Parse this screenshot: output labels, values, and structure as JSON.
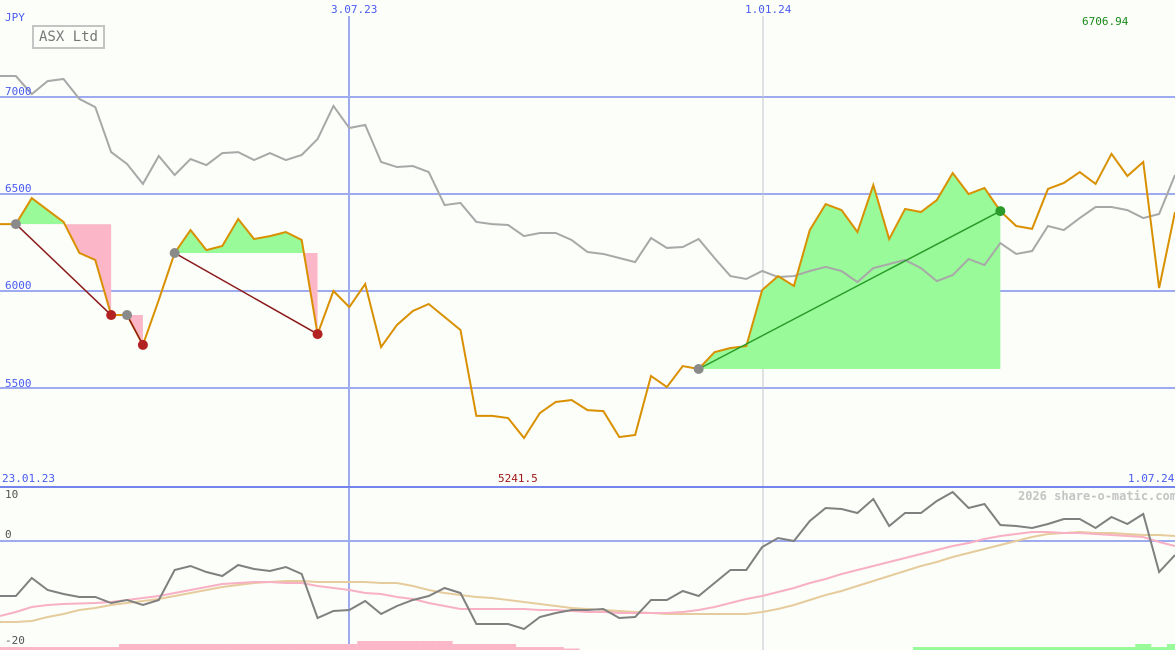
{
  "header": {
    "currency": "JPY",
    "title": "ASX Ltd",
    "high_label": "6706.94",
    "low_label": "5241.5"
  },
  "watermark": "2026 share-o-matic.com",
  "colors": {
    "price": "#d99000",
    "compare": "#a8a8a8",
    "grid": "#9fabf0",
    "win_fill": "#98fa98",
    "loss_fill": "#fbb6c8",
    "loss_line": "#8b1a1a",
    "win_line": "#2a9a2a",
    "momentum": "#808080",
    "ma_fast": "#f8b0c4",
    "ma_slow": "#e6cc9c",
    "high": "#1a8a1a",
    "low": "#a01818"
  },
  "chart_data": [
    {
      "type": "line",
      "x_start": "23.01.23",
      "x_interval": "weekly",
      "x_tick_labels": [
        "23.01.23",
        "3.07.23",
        "1.01.24",
        "1.07.24"
      ],
      "ylabel": "JPY",
      "ylim": [
        5120,
        7210
      ],
      "y_ticks": [
        7000,
        6500,
        6000,
        5500
      ],
      "grid": true,
      "series": [
        {
          "values": [
            6345,
            6345,
            6479,
            6417,
            6356,
            6196,
            6160,
            5876,
            5876,
            5722,
            5954,
            6196,
            6314,
            6211,
            6232,
            6371,
            6268,
            6283,
            6304,
            6263,
            5778,
            6000,
            5917,
            6036,
            5711,
            5825,
            5897,
            5933,
            5866,
            5799,
            5356,
            5356,
            5345,
            5242,
            5371,
            5428,
            5438,
            5386,
            5381,
            5247,
            5258,
            5562,
            5505,
            5613,
            5598,
            5685,
            5706,
            5716,
            6005,
            6077,
            6026,
            6314,
            6448,
            6417,
            6304,
            6546,
            6268,
            6423,
            6407,
            6469,
            6608,
            6500,
            6531,
            6412,
            6335,
            6320,
            6526,
            6557,
            6613,
            6552,
            6707,
            6593,
            6665,
            6015,
            6407
          ]
        },
        {
          "values": [
            7108,
            7108,
            7015,
            7082,
            7093,
            6990,
            6948,
            6716,
            6655,
            6552,
            6696,
            6598,
            6680,
            6649,
            6711,
            6716,
            6675,
            6711,
            6675,
            6701,
            6783,
            6954,
            6840,
            6856,
            6665,
            6639,
            6644,
            6613,
            6443,
            6454,
            6356,
            6345,
            6340,
            6283,
            6299,
            6299,
            6263,
            6201,
            6191,
            6170,
            6149,
            6273,
            6222,
            6227,
            6268,
            6170,
            6077,
            6062,
            6103,
            6072,
            6077,
            6103,
            6124,
            6103,
            6046,
            6118,
            6139,
            6160,
            6118,
            6051,
            6082,
            6165,
            6134,
            6247,
            6191,
            6206,
            6335,
            6314,
            6376,
            6433,
            6433,
            6417,
            6376,
            6397,
            6598
          ]
        }
      ],
      "trades": [
        {
          "entry_week": 1,
          "entry": 6345,
          "exit_week": 7,
          "exit": 5876,
          "result": "loss"
        },
        {
          "entry_week": 8,
          "entry": 5876,
          "exit_week": 9,
          "exit": 5722,
          "result": "loss"
        },
        {
          "entry_week": 11,
          "entry": 6196,
          "exit_week": 20,
          "exit": 5778,
          "result": "loss"
        },
        {
          "entry_week": 44,
          "entry": 5598,
          "exit_week": 63,
          "exit": 6412,
          "result": "win"
        }
      ]
    },
    {
      "type": "line",
      "ylim": [
        -21,
        12
      ],
      "y_ticks": [
        10,
        0,
        -20
      ],
      "series": [
        {
          "values": [
            -11,
            -11,
            -7.4,
            -9.8,
            -10.6,
            -11.2,
            -11.2,
            -12.4,
            -11.8,
            -12.8,
            -11.8,
            -5.8,
            -5,
            -6.2,
            -7,
            -4.8,
            -5.6,
            -6,
            -5.2,
            -6.6,
            -15.4,
            -14,
            -13.8,
            -12,
            -14.6,
            -13,
            -11.8,
            -11,
            -9.4,
            -10.4,
            -16.6,
            -16.6,
            -16.6,
            -17.6,
            -15.2,
            -14.4,
            -13.8,
            -13.8,
            -13.6,
            -15.4,
            -15.2,
            -11.8,
            -11.8,
            -10,
            -11,
            -8.4,
            -5.8,
            -5.8,
            -1.2,
            0.6,
            0,
            4,
            6.6,
            6.4,
            5.6,
            8.4,
            3,
            5.6,
            5.6,
            8,
            9.8,
            6.6,
            7.4,
            3.2,
            3,
            2.6,
            3.4,
            4.4,
            4.4,
            2.6,
            4.8,
            3.4,
            5.4,
            -6.2,
            -2.8
          ]
        },
        {
          "values": [
            -15,
            -14.2,
            -13.2,
            -12.8,
            -12.6,
            -12.5,
            -12.4,
            -12.2,
            -11.8,
            -11.4,
            -11,
            -10.4,
            -9.8,
            -9.2,
            -8.6,
            -8.4,
            -8.2,
            -8.2,
            -8.4,
            -8.4,
            -9,
            -9.4,
            -9.8,
            -10.4,
            -10.6,
            -11.2,
            -11.6,
            -12.4,
            -13,
            -13.6,
            -13.6,
            -13.6,
            -13.6,
            -13.6,
            -13.8,
            -13.8,
            -14,
            -14.2,
            -14.2,
            -14.4,
            -14.4,
            -14.4,
            -14.4,
            -14.2,
            -13.8,
            -13.2,
            -12.4,
            -11.6,
            -11,
            -10.2,
            -9.4,
            -8.4,
            -7.6,
            -6.6,
            -5.8,
            -5,
            -4.2,
            -3.4,
            -2.6,
            -1.8,
            -1,
            -0.4,
            0.4,
            1,
            1.4,
            1.8,
            1.8,
            1.6,
            1.6,
            1.4,
            1.2,
            1,
            0.8,
            -0.2,
            -1
          ]
        },
        {
          "values": [
            -16.2,
            -16.2,
            -16,
            -15.2,
            -14.6,
            -13.8,
            -13.4,
            -12.8,
            -12.4,
            -12,
            -11.6,
            -11,
            -10.4,
            -9.8,
            -9.2,
            -8.8,
            -8.4,
            -8.2,
            -8,
            -8,
            -8.2,
            -8.2,
            -8.2,
            -8.2,
            -8.4,
            -8.4,
            -9,
            -9.8,
            -10.4,
            -10.8,
            -11.2,
            -11.4,
            -11.8,
            -12.2,
            -12.6,
            -13,
            -13.4,
            -13.6,
            -13.8,
            -14,
            -14.2,
            -14.4,
            -14.6,
            -14.6,
            -14.6,
            -14.6,
            -14.6,
            -14.6,
            -14.2,
            -13.6,
            -12.8,
            -11.8,
            -10.8,
            -10,
            -9,
            -8,
            -7,
            -6,
            -5,
            -4.2,
            -3.2,
            -2.4,
            -1.6,
            -0.8,
            0,
            0.8,
            1.4,
            1.6,
            1.8,
            1.6,
            1.6,
            1.4,
            1.2,
            1.2,
            1
          ]
        }
      ],
      "volume": [
        -1,
        -1,
        -1,
        -1,
        -1,
        -1,
        -1,
        -1,
        -2,
        -2,
        -2,
        -2,
        -2,
        -2,
        -2,
        -2,
        -2,
        -2,
        -2,
        -2,
        -2,
        -2,
        -2,
        -3,
        -3,
        -3,
        -3,
        -3,
        -3,
        -2,
        -2,
        -2,
        -2,
        -1,
        -1,
        -1,
        -0.5,
        0,
        0,
        0,
        0,
        0,
        0,
        0,
        0,
        0,
        0,
        0,
        0,
        0,
        0,
        0,
        0,
        0,
        0,
        0,
        0,
        0,
        1,
        1,
        1,
        1,
        1,
        1,
        1,
        1,
        1,
        1,
        1,
        1,
        1,
        1,
        2,
        1,
        2
      ]
    }
  ]
}
